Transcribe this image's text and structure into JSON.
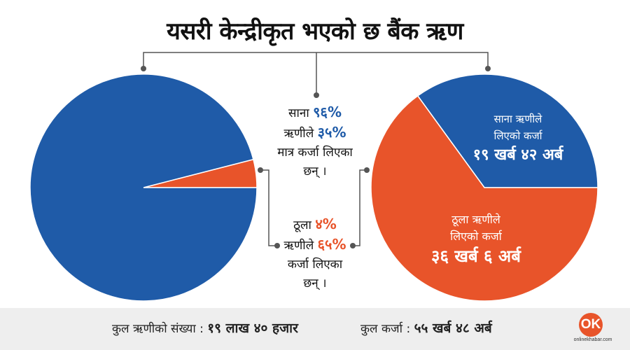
{
  "title": "यसरी केन्द्रीकृत भएको छ बैंक ऋण",
  "colors": {
    "blue": "#1f5ba8",
    "orange": "#e8542a",
    "connector": "#555555"
  },
  "chart_data": [
    {
      "type": "pie",
      "series": [
        {
          "label": "साना",
          "value": 96,
          "color": "#1f5ba8"
        },
        {
          "label": "ठूला",
          "value": 4,
          "color": "#e8542a"
        }
      ]
    },
    {
      "type": "pie",
      "series": [
        {
          "label": "साना",
          "value": 35,
          "color": "#1f5ba8"
        },
        {
          "label": "ठूला",
          "value": 65,
          "color": "#e8542a"
        }
      ]
    }
  ],
  "middle": {
    "small": {
      "l1_text": "साना",
      "l1_value": "९६%",
      "l2_text": "ऋणीले",
      "l2_value": "३५%",
      "l3": "मात्र कर्जा लिएका",
      "l4": "छन् ।"
    },
    "large": {
      "l1_text": "ठूला",
      "l1_value": "४%",
      "l2_text": "ऋणीले",
      "l2_value": "६५%",
      "l3": "कर्जा लिएका",
      "l4": "छन् ।"
    }
  },
  "right_labels": {
    "small": {
      "line1": "साना ऋणीले",
      "line2": "लिएको कर्जा",
      "amount": "१९ खर्ब ४२ अर्ब"
    },
    "large": {
      "line1": "ठूला ऋणीले",
      "line2": "लिएको कर्जा",
      "amount": "३६ खर्ब ६ अर्ब"
    }
  },
  "footer": {
    "borrowers_label": "कुल ऋणीको संख्या :",
    "borrowers_value": "१९ लाख ४० हजार",
    "loan_label": "कुल कर्जा :",
    "loan_value": "५५ खर्ब ४८ अर्ब"
  },
  "logo": {
    "mark": "OK",
    "text": "onlinekhabar.com"
  }
}
